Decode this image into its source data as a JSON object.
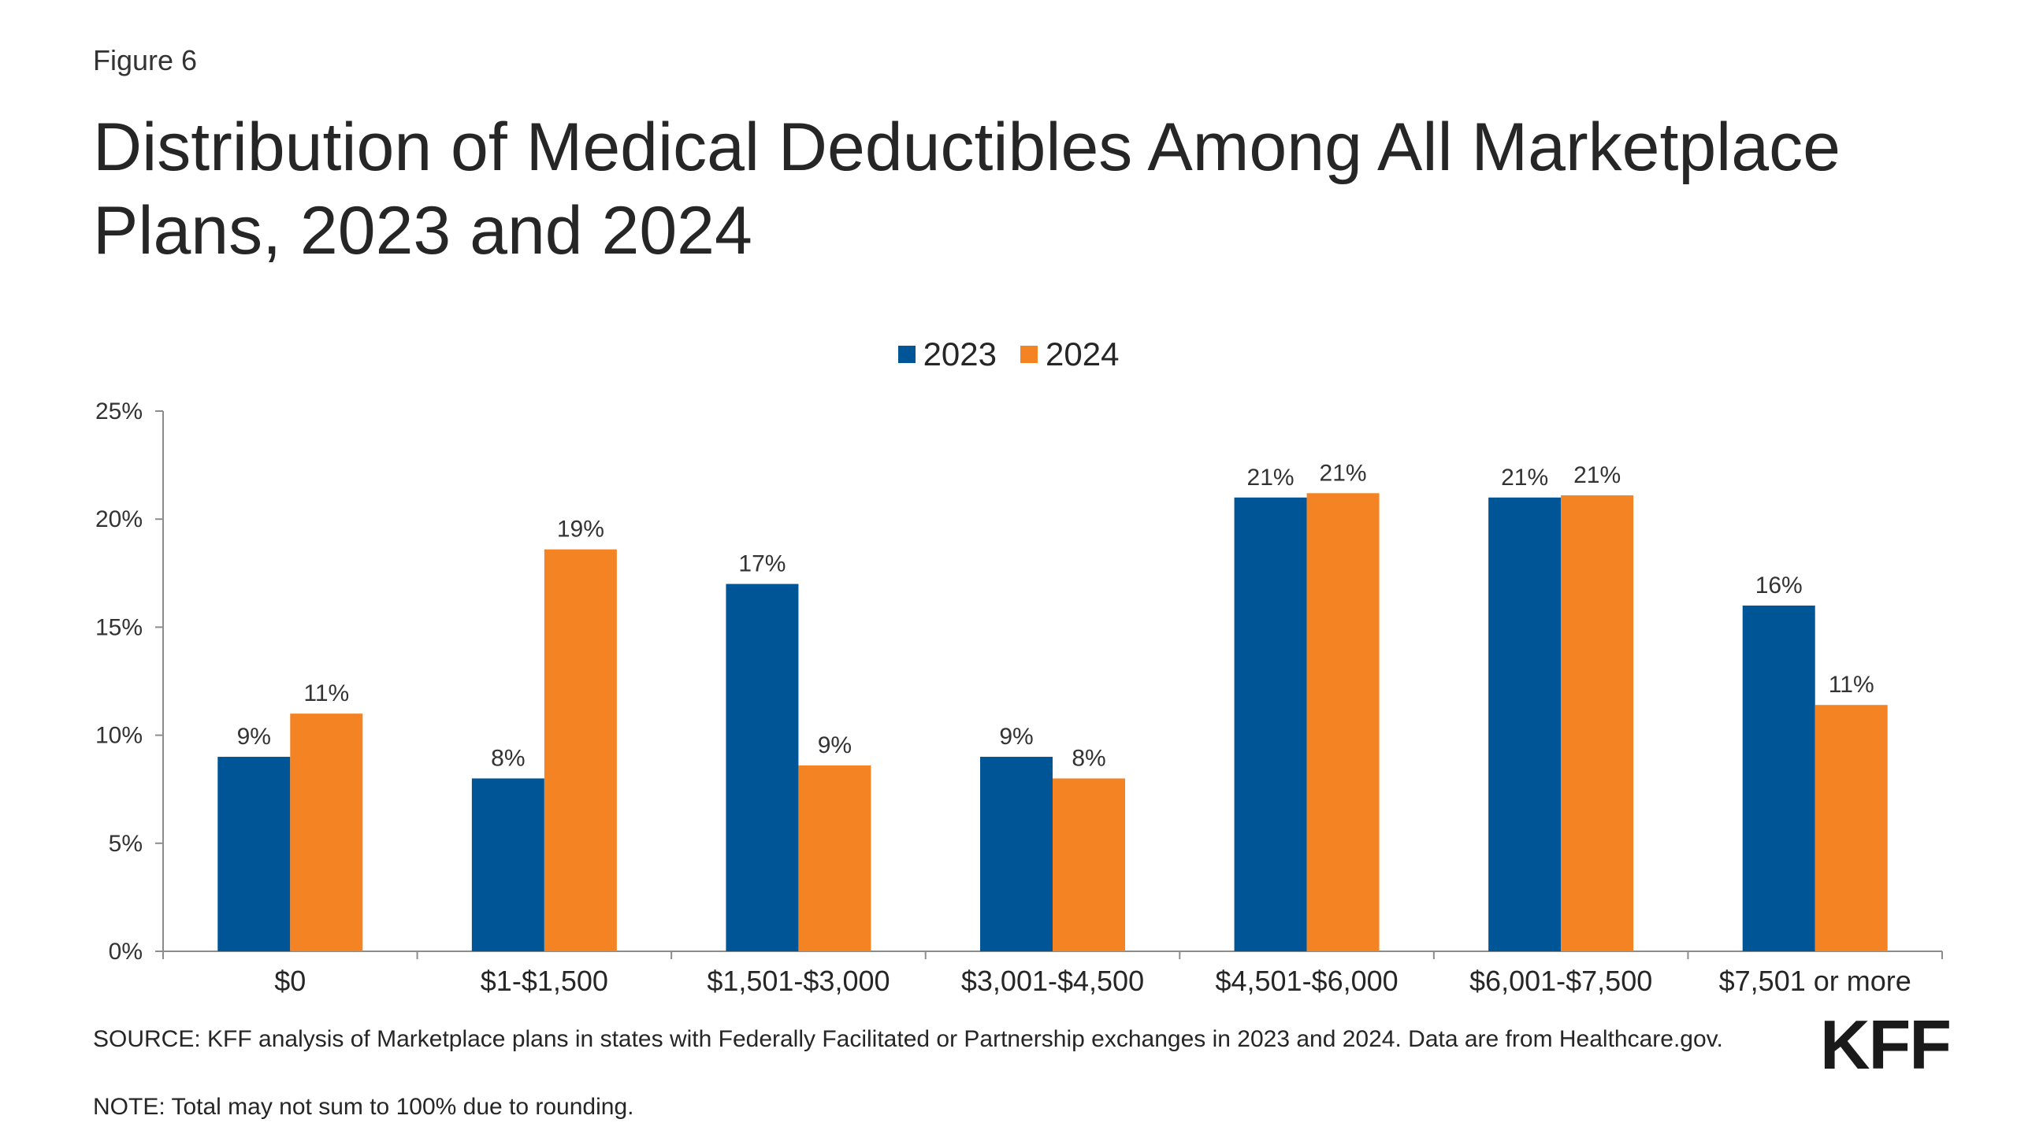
{
  "figure_label": "Figure 6",
  "title": "Distribution of Medical Deductibles Among All Marketplace Plans, 2023 and 2024",
  "source": "SOURCE: KFF analysis of Marketplace plans in states with Federally Facilitated or Partnership exchanges in 2023 and 2024. Data are from Healthcare.gov.",
  "note": "NOTE: Total may not sum to 100% due to rounding.",
  "logo": "KFF",
  "colors": {
    "series_2023": "#005596",
    "series_2024": "#F48323"
  },
  "chart_data": {
    "type": "bar",
    "categories": [
      "$0",
      "$1-$1,500",
      "$1,501-$3,000",
      "$3,001-$4,500",
      "$4,501-$6,000",
      "$6,001-$7,500",
      "$7,501 or more"
    ],
    "series": [
      {
        "name": "2023",
        "values": [
          9,
          8,
          17,
          9,
          21,
          21,
          16
        ],
        "labels": [
          "9%",
          "8%",
          "17%",
          "9%",
          "21%",
          "21%",
          "16%"
        ]
      },
      {
        "name": "2024",
        "values": [
          11,
          18.6,
          8.6,
          8,
          21.2,
          21.1,
          11.4
        ],
        "labels": [
          "11%",
          "19%",
          "9%",
          "8%",
          "21%",
          "21%",
          "11%"
        ]
      }
    ],
    "ylim": [
      0,
      25
    ],
    "yticks": [
      "0%",
      "5%",
      "10%",
      "15%",
      "20%",
      "25%"
    ],
    "ytick_values": [
      0,
      5,
      10,
      15,
      20,
      25
    ],
    "legend_position": "top-center",
    "grid": false
  }
}
